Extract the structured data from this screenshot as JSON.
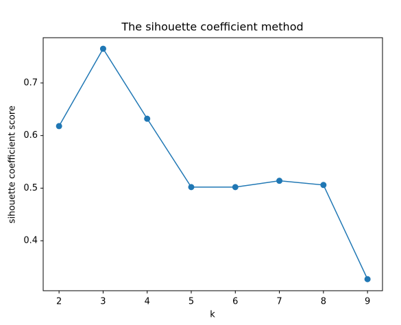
{
  "chart_data": {
    "type": "line",
    "title": "The sihouette coefficient method",
    "x_label": "k",
    "y_label": "sihouette coefficient score",
    "x": [
      2,
      3,
      4,
      5,
      6,
      7,
      8,
      9
    ],
    "series": [
      {
        "color": "#1f77b4",
        "values": [
          0.618,
          0.765,
          0.632,
          0.502,
          0.502,
          0.514,
          0.506,
          0.327
        ]
      }
    ],
    "xlim": [
      1.64,
      9.34
    ],
    "ylim": [
      0.305,
      0.786
    ],
    "xticks": [
      2,
      3,
      4,
      5,
      6,
      7,
      8,
      9
    ],
    "yticks": [
      0.4,
      0.5,
      0.6,
      0.7
    ],
    "grid": false
  }
}
